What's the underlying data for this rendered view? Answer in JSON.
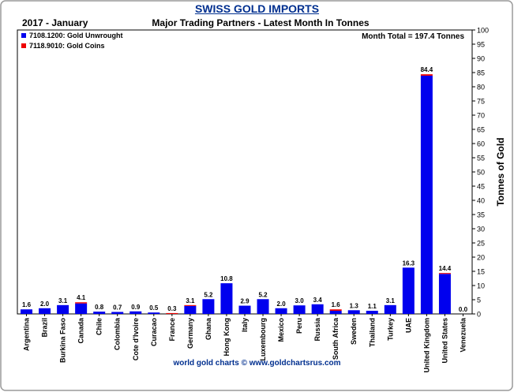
{
  "chart_data": {
    "type": "bar",
    "stacked": true,
    "title": "SWISS GOLD IMPORTS",
    "period": "2017 - January",
    "subtitle": "Major Trading Partners - Latest Month In Tonnes",
    "month_total": "Month Total = 197.4 Tonnes",
    "ylabel": "Tonnes of Gold",
    "ylim": [
      0,
      100
    ],
    "y_ticks": [
      0,
      5,
      10,
      15,
      20,
      25,
      30,
      35,
      40,
      45,
      50,
      55,
      60,
      65,
      70,
      75,
      80,
      85,
      90,
      95,
      100
    ],
    "y_axis_side": "right",
    "grid": false,
    "legend_position": "top-left",
    "categories": [
      "Argentina",
      "Brazil",
      "Burkina Faso",
      "Canada",
      "Chile",
      "Colombia",
      "Cote d'Ivoire",
      "Curacao",
      "France",
      "Germany",
      "Ghana",
      "Hong Kong",
      "Italy",
      "Luxembourg",
      "Mexico",
      "Peru",
      "Russia",
      "South Africa",
      "Sweden",
      "Thailand",
      "Turkey",
      "UAE",
      "United Kingdom",
      "United States",
      "Venezuela"
    ],
    "totals": [
      "1.6",
      "2.0",
      "3.1",
      "4.1",
      "0.8",
      "0.7",
      "0.9",
      "0.5",
      "0.3",
      "3.1",
      "5.2",
      "10.8",
      "2.9",
      "5.2",
      "2.0",
      "3.0",
      "3.4",
      "1.6",
      "1.3",
      "1.1",
      "3.1",
      "16.3",
      "84.4",
      "14.4",
      "0.0"
    ],
    "series": [
      {
        "name": "7108.1200: Gold Unwrought",
        "color": "#0000ee",
        "values": [
          1.6,
          2.0,
          3.1,
          3.7,
          0.8,
          0.7,
          0.9,
          0.5,
          0.0,
          2.8,
          5.2,
          10.8,
          2.9,
          5.2,
          2.0,
          3.0,
          3.4,
          1.1,
          1.3,
          1.1,
          3.1,
          16.3,
          83.9,
          14.1,
          0.0
        ]
      },
      {
        "name": "7118.9010: Gold Coins",
        "color": "#ee0000",
        "values": [
          0.0,
          0.0,
          0.0,
          0.4,
          0.0,
          0.0,
          0.0,
          0.0,
          0.3,
          0.3,
          0.0,
          0.0,
          0.0,
          0.0,
          0.0,
          0.0,
          0.0,
          0.5,
          0.0,
          0.0,
          0.0,
          0.0,
          0.5,
          0.3,
          0.0
        ]
      }
    ],
    "footer": "world gold charts © www.goldchartsrus.com"
  }
}
